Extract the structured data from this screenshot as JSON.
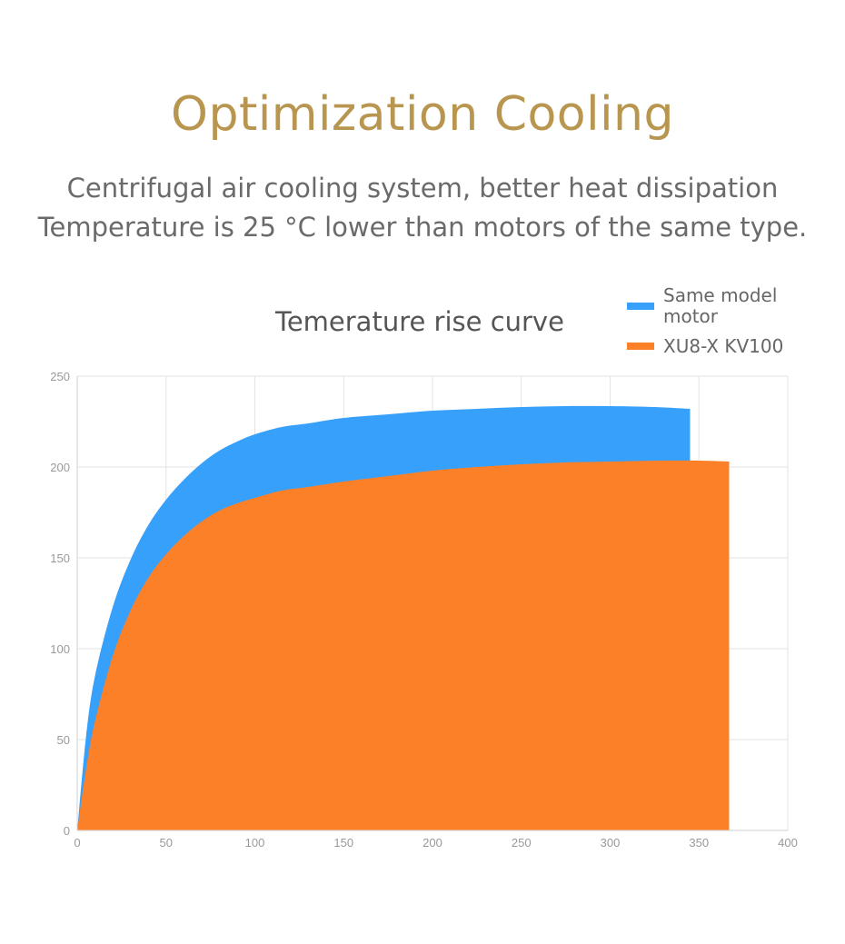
{
  "header": {
    "title": "Optimization Cooling",
    "line1": "Centrifugal air cooling system, better heat dissipation",
    "line2": "Temperature is 25 °C lower than motors of the same type."
  },
  "chart_data": {
    "type": "area",
    "title": "Temerature rise curve",
    "xlabel": "",
    "ylabel": "",
    "xlim": [
      0,
      400
    ],
    "ylim": [
      0,
      250
    ],
    "x_ticks": [
      "0",
      "50",
      "100",
      "150",
      "200",
      "250",
      "300",
      "350",
      "400"
    ],
    "y_ticks": [
      "0",
      "50",
      "100",
      "150",
      "200",
      "250"
    ],
    "grid": true,
    "legend_position": "top-right",
    "series": [
      {
        "name": "Same model motor",
        "color": "#36a0fb",
        "x": [
          0,
          5,
          10,
          20,
          30,
          40,
          50,
          60,
          70,
          80,
          90,
          100,
          115,
          130,
          150,
          175,
          200,
          225,
          250,
          275,
          300,
          325,
          345
        ],
        "y": [
          0,
          52,
          85,
          123,
          149,
          168,
          182,
          193,
          202,
          209,
          214,
          218,
          222,
          224,
          227,
          229,
          231,
          232,
          233,
          233.5,
          233.5,
          233,
          232
        ]
      },
      {
        "name": "XU8-X KV100",
        "color": "#fc8027",
        "x": [
          0,
          5,
          10,
          20,
          30,
          40,
          50,
          60,
          70,
          80,
          90,
          100,
          115,
          130,
          150,
          175,
          200,
          225,
          250,
          275,
          300,
          325,
          350,
          367
        ],
        "y": [
          0,
          34,
          60,
          96,
          121,
          139,
          152,
          162,
          170,
          176,
          180,
          183,
          187,
          189,
          192,
          195,
          198,
          200,
          201.5,
          202.5,
          203,
          203.5,
          203.5,
          203
        ]
      }
    ]
  }
}
